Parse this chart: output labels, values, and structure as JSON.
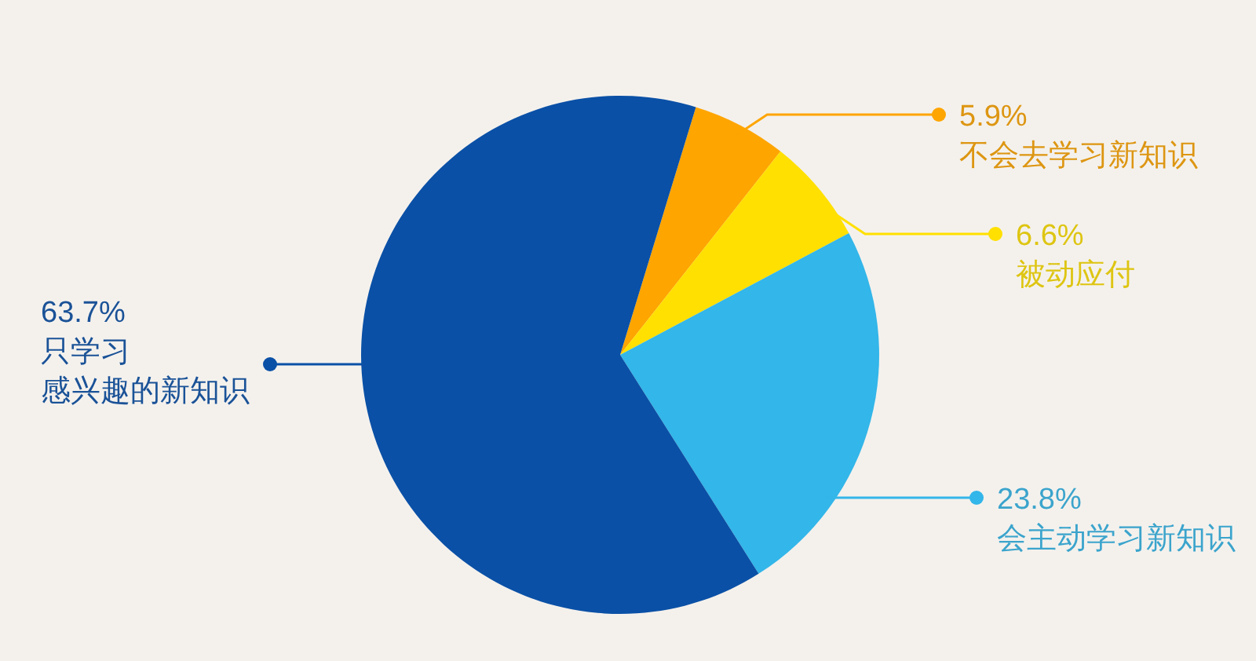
{
  "chart_data": {
    "type": "pie",
    "categories": [
      "不会去学习新知识",
      "被动应付",
      "会主动学习新知识",
      "只学习感兴趣的新知识"
    ],
    "values": [
      5.9,
      6.6,
      23.8,
      63.7
    ],
    "colors": [
      "#fea500",
      "#ffe000",
      "#33b6e9",
      "#0a50a6"
    ],
    "value_labels": [
      "5.9%",
      "6.6%",
      "23.8%",
      "63.7%"
    ]
  }
}
